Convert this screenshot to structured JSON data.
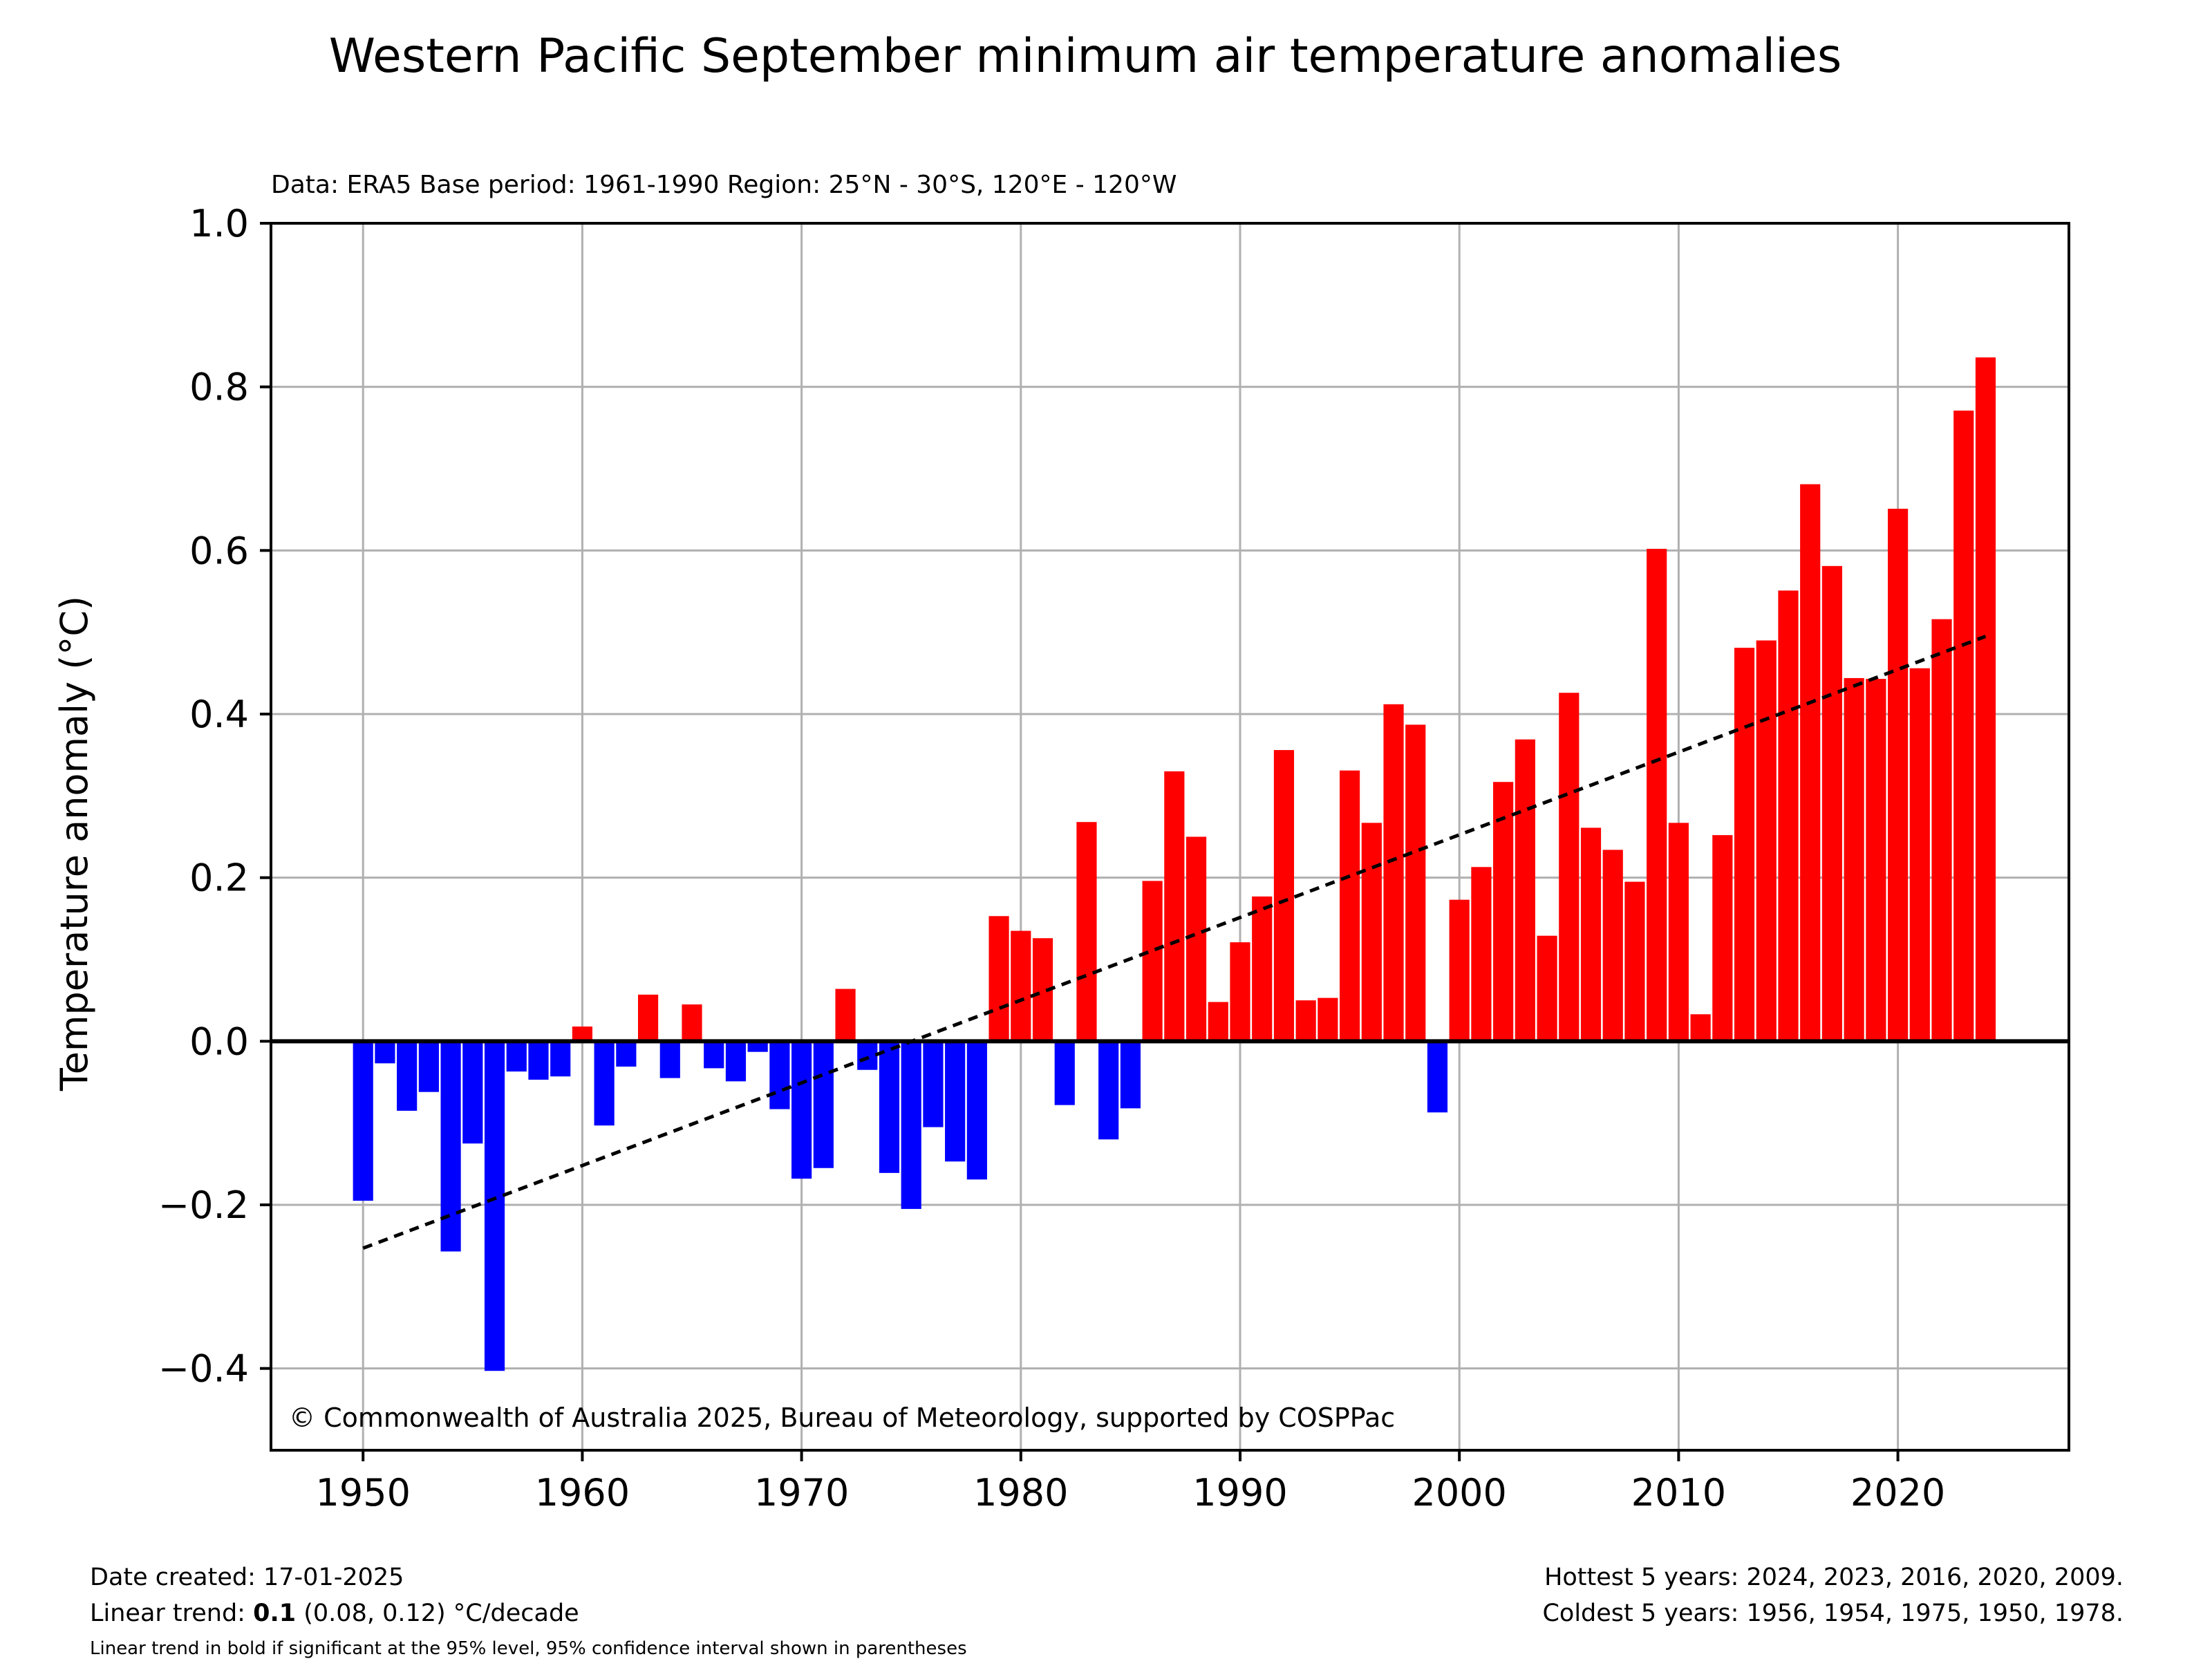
{
  "chart_data": {
    "type": "bar",
    "title": "Western Pacific September minimum air temperature anomalies",
    "subtitle": "Data: ERA5  Base period: 1961-1990  Region: 25°N - 30°S, 120°E - 120°W",
    "xlabel": "",
    "ylabel": "Temperature anomaly (°C)",
    "xlim": [
      1945.8,
      2027.8
    ],
    "ylim": [
      -0.5,
      1.0
    ],
    "xticks": [
      1950,
      1960,
      1970,
      1980,
      1990,
      2000,
      2010,
      2020
    ],
    "xtick_labels": [
      "1950",
      "1960",
      "1970",
      "1980",
      "1990",
      "2000",
      "2010",
      "2020"
    ],
    "yticks": [
      -0.4,
      -0.2,
      0.0,
      0.2,
      0.4,
      0.6,
      0.8,
      1.0
    ],
    "ytick_labels": [
      "−0.4",
      "−0.2",
      "0.0",
      "0.2",
      "0.4",
      "0.6",
      "0.8",
      "1.0"
    ],
    "grid": true,
    "colors": {
      "positive": "#ff0000",
      "negative": "#0000ff",
      "trend": "#000000",
      "grid": "#b0b0b0"
    },
    "years": [
      1950,
      1951,
      1952,
      1953,
      1954,
      1955,
      1956,
      1957,
      1958,
      1959,
      1960,
      1961,
      1962,
      1963,
      1964,
      1965,
      1966,
      1967,
      1968,
      1969,
      1970,
      1971,
      1972,
      1973,
      1974,
      1975,
      1976,
      1977,
      1978,
      1979,
      1980,
      1981,
      1982,
      1983,
      1984,
      1985,
      1986,
      1987,
      1988,
      1989,
      1990,
      1991,
      1992,
      1993,
      1994,
      1995,
      1996,
      1997,
      1998,
      1999,
      2000,
      2001,
      2002,
      2003,
      2004,
      2005,
      2006,
      2007,
      2008,
      2009,
      2010,
      2011,
      2012,
      2013,
      2014,
      2015,
      2016,
      2017,
      2018,
      2019,
      2020,
      2021,
      2022,
      2023,
      2024
    ],
    "values": [
      -0.195,
      -0.027,
      -0.085,
      -0.062,
      -0.257,
      -0.125,
      -0.403,
      -0.037,
      -0.047,
      -0.043,
      0.018,
      -0.103,
      -0.031,
      0.057,
      -0.045,
      0.045,
      -0.033,
      -0.049,
      -0.013,
      -0.083,
      -0.168,
      -0.155,
      0.064,
      -0.035,
      -0.161,
      -0.205,
      -0.105,
      -0.147,
      -0.169,
      0.153,
      0.135,
      0.126,
      -0.078,
      0.268,
      -0.12,
      -0.082,
      0.196,
      0.33,
      0.25,
      0.048,
      0.121,
      0.177,
      0.356,
      0.05,
      0.053,
      0.331,
      0.267,
      0.412,
      0.387,
      -0.087,
      0.173,
      0.213,
      0.317,
      0.369,
      0.129,
      0.426,
      0.261,
      0.234,
      0.195,
      0.602,
      0.267,
      0.033,
      0.252,
      0.481,
      0.49,
      0.551,
      0.681,
      0.581,
      0.444,
      0.443,
      0.651,
      0.456,
      0.516,
      0.771,
      0.836
    ],
    "trend_line": {
      "x": [
        1950,
        2024
      ],
      "y": [
        -0.253,
        0.495
      ]
    },
    "annotation": "© Commonwealth of Australia 2025, Bureau of Meteorology, supported by COSPPac",
    "footer": {
      "date_created": "Date created: 17-01-2025",
      "trend_prefix": "Linear trend: ",
      "trend_value": "0.1",
      "trend_suffix": " (0.08, 0.12) °C/decade",
      "trend_note": "Linear trend in bold if significant at the 95% level, 95% confidence interval shown in parentheses",
      "hottest": "Hottest 5 years: 2024, 2023, 2016, 2020, 2009.",
      "coldest": "Coldest 5 years: 1956, 1954, 1975, 1950, 1978."
    }
  }
}
